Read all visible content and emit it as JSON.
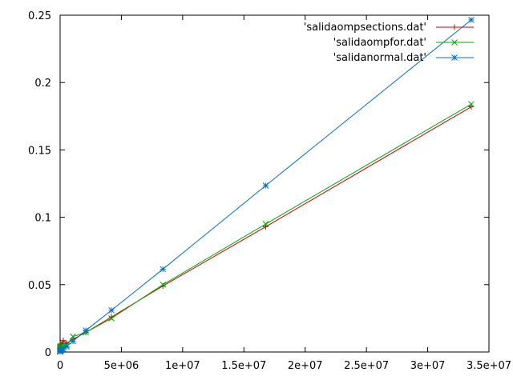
{
  "chart_data": {
    "type": "line",
    "xlim": [
      0,
      35000000
    ],
    "ylim": [
      0,
      0.25
    ],
    "x_ticks": [
      0,
      5000000,
      10000000,
      15000000,
      20000000,
      25000000,
      30000000,
      35000000
    ],
    "x_tick_labels": [
      "0",
      "5e+06",
      "1e+07",
      "1.5e+07",
      "2e+07",
      "2.5e+07",
      "3e+07",
      "3.5e+07"
    ],
    "y_ticks": [
      0,
      0.05,
      0.1,
      0.15,
      0.2,
      0.25
    ],
    "y_tick_labels": [
      "0",
      "0.05",
      "0.1",
      "0.15",
      "0.2",
      "0.25"
    ],
    "grid": false,
    "legend_position": "top-right",
    "series": [
      {
        "name": "'salidaompsections.dat'",
        "color": "#cc0000",
        "marker": "plus",
        "points": [
          [
            128,
            0.001
          ],
          [
            256,
            0.0015
          ],
          [
            512,
            0.002
          ],
          [
            1024,
            0.003
          ],
          [
            2048,
            0.004
          ],
          [
            4096,
            0.005
          ],
          [
            8192,
            0.0045
          ],
          [
            16384,
            0.004
          ],
          [
            32768,
            0.0035
          ],
          [
            65536,
            0.005
          ],
          [
            131072,
            0.006
          ],
          [
            262144,
            0.0085
          ],
          [
            524288,
            0.0065
          ],
          [
            1048576,
            0.0095
          ],
          [
            2097152,
            0.0145
          ],
          [
            4194304,
            0.026
          ],
          [
            8388608,
            0.049
          ],
          [
            16777216,
            0.093
          ],
          [
            33554432,
            0.182
          ]
        ]
      },
      {
        "name": "'salidaompfor.dat'",
        "color": "#00aa00",
        "marker": "cross",
        "points": [
          [
            128,
            0.0005
          ],
          [
            256,
            0.001
          ],
          [
            512,
            0.0015
          ],
          [
            1024,
            0.002
          ],
          [
            2048,
            0.0025
          ],
          [
            4096,
            0.003
          ],
          [
            8192,
            0.0035
          ],
          [
            16384,
            0.004
          ],
          [
            32768,
            0.0045
          ],
          [
            65536,
            0.0035
          ],
          [
            131072,
            0.0025
          ],
          [
            262144,
            0.004
          ],
          [
            524288,
            0.005
          ],
          [
            1048576,
            0.0115
          ],
          [
            2097152,
            0.0145
          ],
          [
            4194304,
            0.025
          ],
          [
            8388608,
            0.05
          ],
          [
            16777216,
            0.095
          ],
          [
            33554432,
            0.184
          ]
        ]
      },
      {
        "name": "'salidanormal.dat'",
        "color": "#0072cc",
        "marker": "star",
        "points": [
          [
            128,
            0.0002
          ],
          [
            256,
            0.0003
          ],
          [
            512,
            0.0004
          ],
          [
            1024,
            0.0005
          ],
          [
            2048,
            0.0006
          ],
          [
            4096,
            0.0007
          ],
          [
            8192,
            0.0008
          ],
          [
            16384,
            0.0009
          ],
          [
            32768,
            0.001
          ],
          [
            65536,
            0.0012
          ],
          [
            131072,
            0.0016
          ],
          [
            262144,
            0.0022
          ],
          [
            524288,
            0.004
          ],
          [
            1048576,
            0.008
          ],
          [
            2097152,
            0.016
          ],
          [
            4194304,
            0.031
          ],
          [
            8388608,
            0.0615
          ],
          [
            16777216,
            0.1235
          ],
          [
            33554432,
            0.2465
          ]
        ]
      }
    ]
  }
}
